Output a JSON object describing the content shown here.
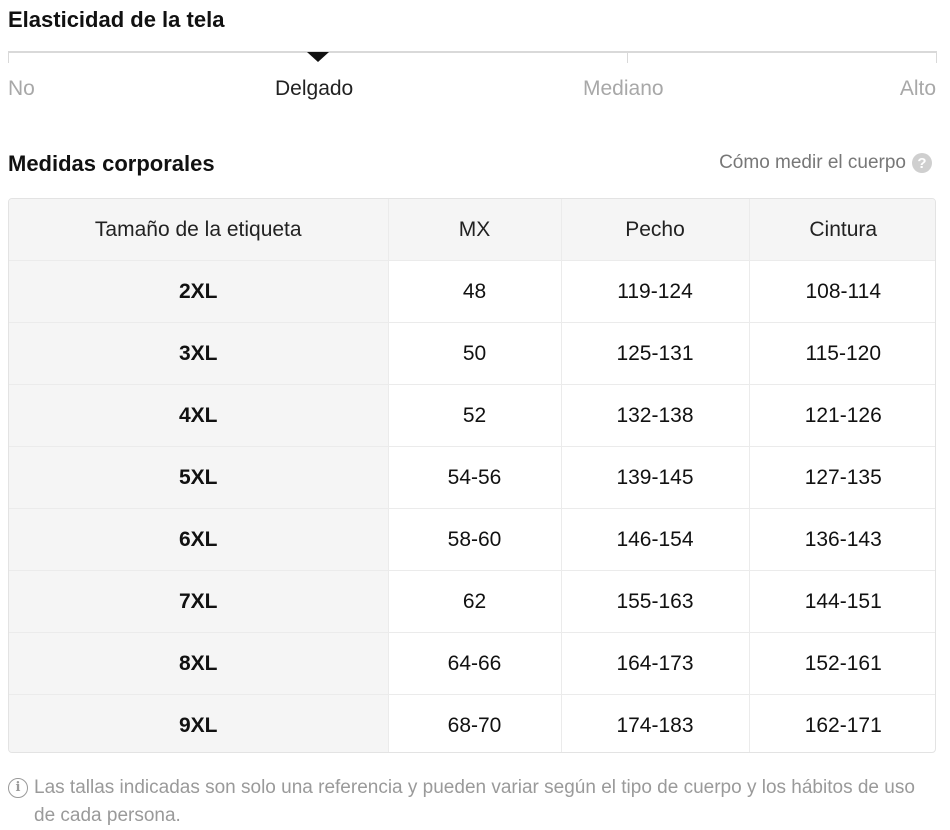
{
  "stretch": {
    "title": "Elasticidad de la tela",
    "levels": [
      "No",
      "Delgado",
      "Mediano",
      "Alto"
    ],
    "selected": "Delgado"
  },
  "body_measurements": {
    "title": "Medidas corporales",
    "how_to_link": "Cómo medir el cuerpo",
    "help_icon": "question-circle-icon"
  },
  "table": {
    "headers": [
      "Tamaño de la etiqueta",
      "MX",
      "Pecho",
      "Cintura"
    ],
    "rows": [
      [
        "2XL",
        "48",
        "119-124",
        "108-114"
      ],
      [
        "3XL",
        "50",
        "125-131",
        "115-120"
      ],
      [
        "4XL",
        "52",
        "132-138",
        "121-126"
      ],
      [
        "5XL",
        "54-56",
        "139-145",
        "127-135"
      ],
      [
        "6XL",
        "58-60",
        "146-154",
        "136-143"
      ],
      [
        "7XL",
        "62",
        "155-163",
        "144-151"
      ],
      [
        "8XL",
        "64-66",
        "164-173",
        "152-161"
      ],
      [
        "9XL",
        "68-70",
        "174-183",
        "162-171"
      ]
    ]
  },
  "note": {
    "icon": "info-icon",
    "text": "Las tallas indicadas son solo una referencia y pueden variar según el tipo de cuerpo y los hábitos de uso de cada persona."
  }
}
